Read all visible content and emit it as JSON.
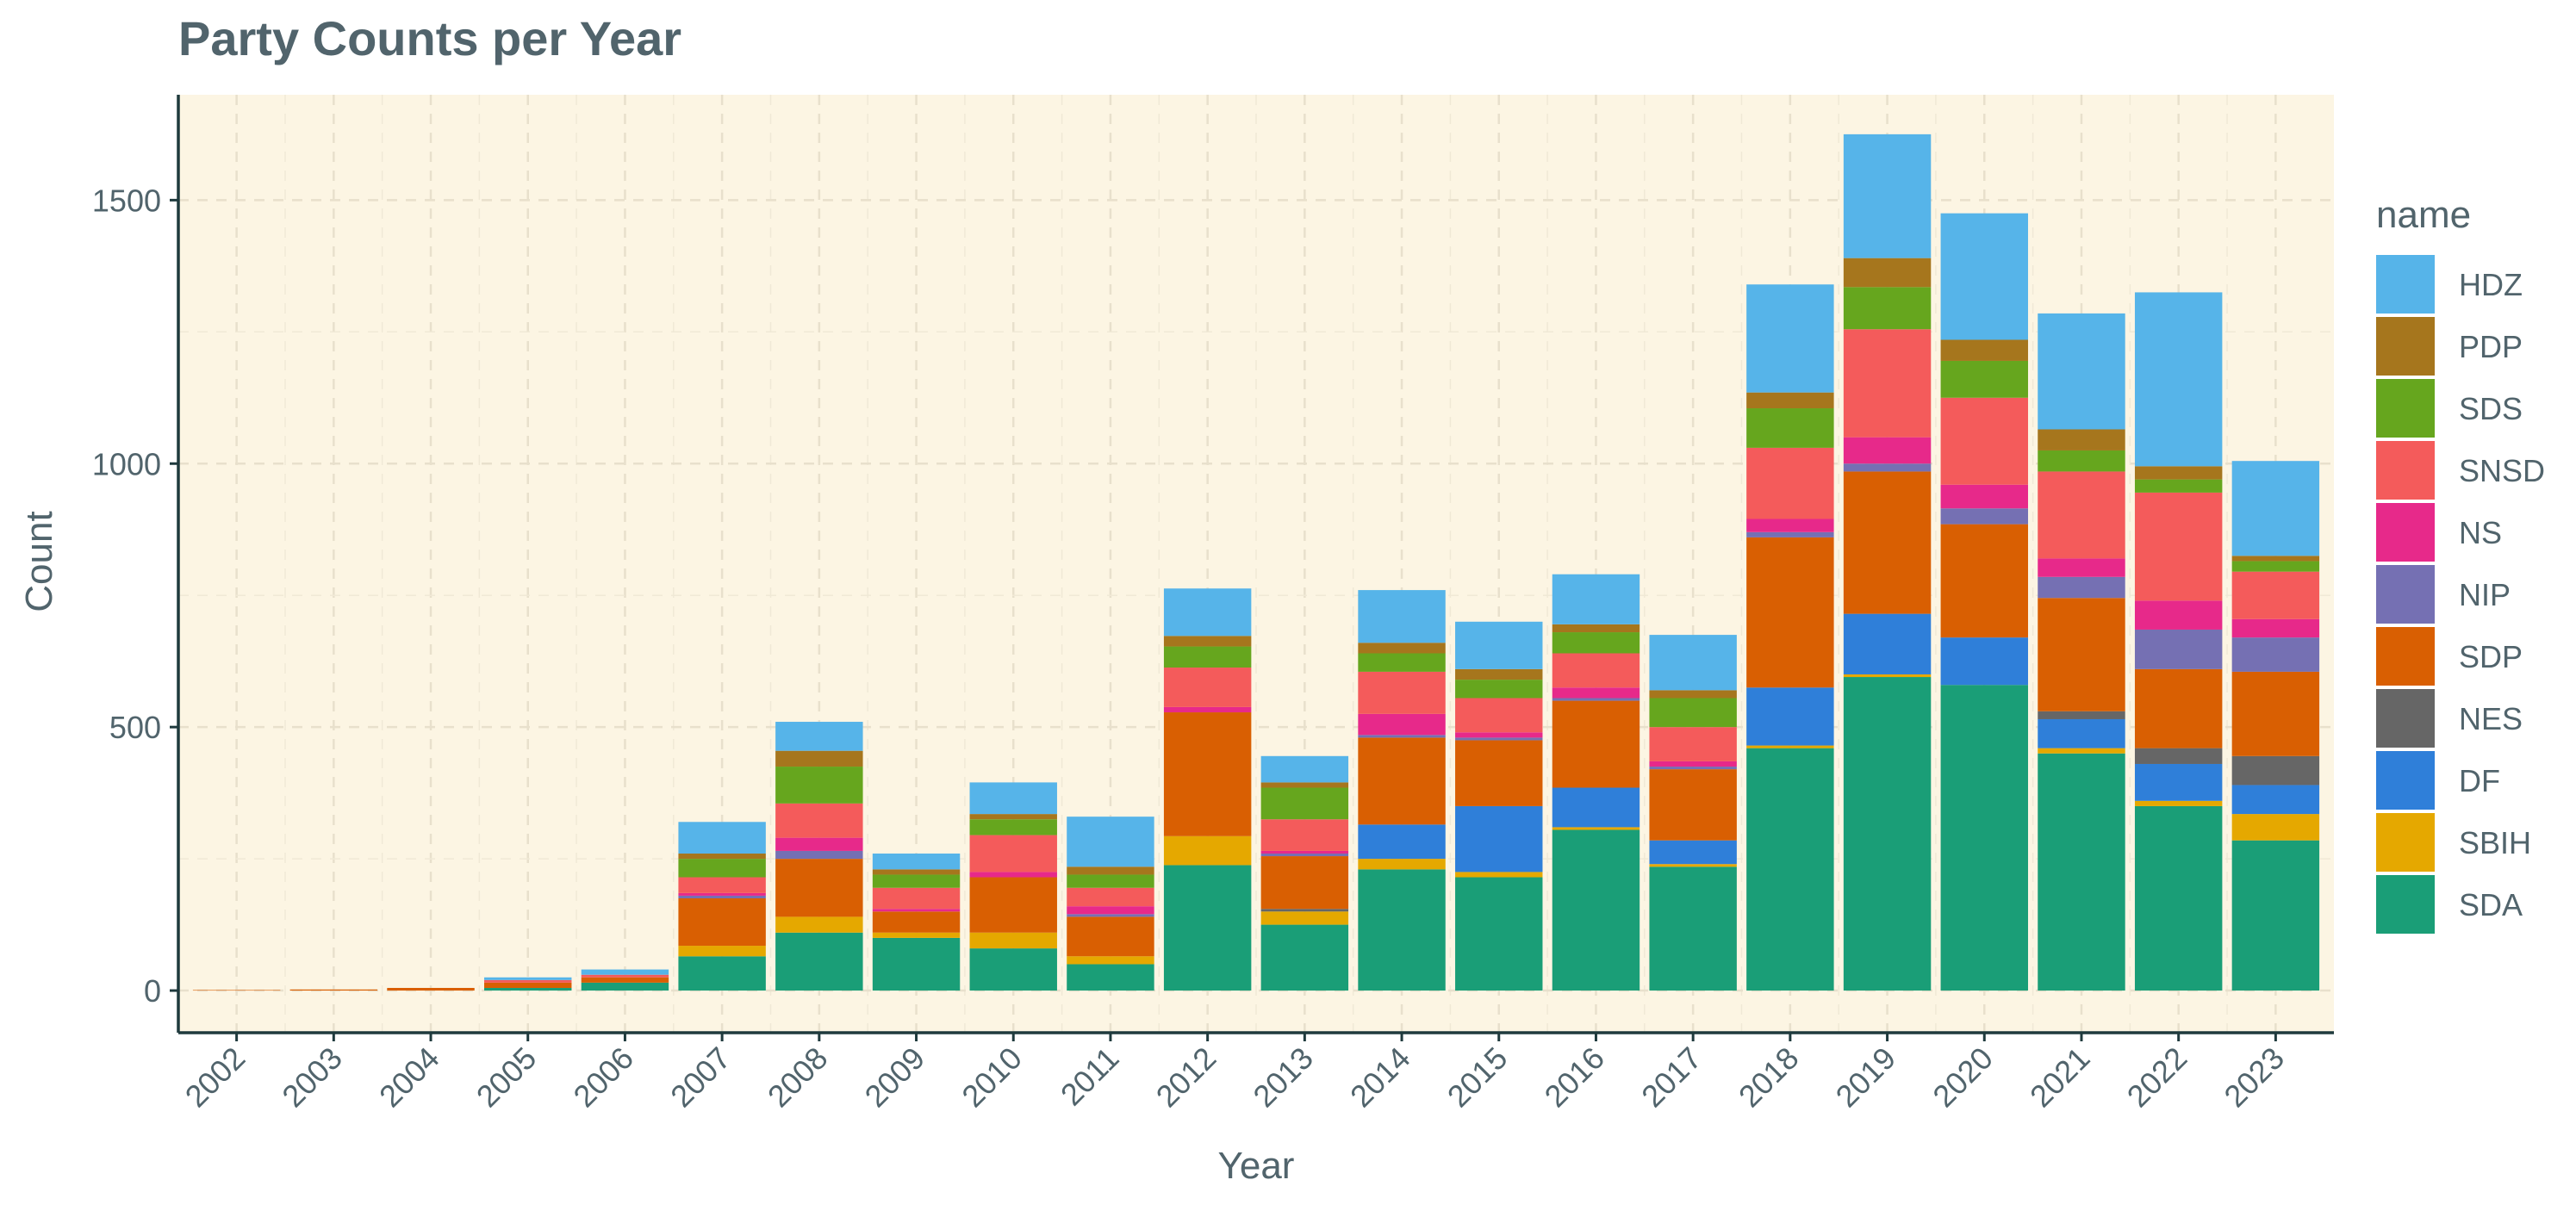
{
  "chart_data": {
    "type": "bar",
    "stacked": true,
    "title": "Party Counts per Year",
    "xlabel": "Year",
    "ylabel": "Count",
    "ylim": [
      -80,
      1700
    ],
    "yticks": [
      0,
      500,
      1000,
      1500
    ],
    "grid": true,
    "legend_title": "name",
    "legend_position": "right",
    "panel_background": "#fcf5e3",
    "categories": [
      "2002",
      "2003",
      "2004",
      "2005",
      "2006",
      "2007",
      "2008",
      "2009",
      "2010",
      "2011",
      "2012",
      "2013",
      "2014",
      "2015",
      "2016",
      "2017",
      "2018",
      "2019",
      "2020",
      "2021",
      "2022",
      "2023"
    ],
    "stack_order": [
      "SDA",
      "SBIH",
      "DF",
      "NES",
      "SDP",
      "NIP",
      "NS",
      "SNSD",
      "SDS",
      "PDP",
      "HDZ"
    ],
    "legend_order": [
      "HDZ",
      "PDP",
      "SDS",
      "SNSD",
      "NS",
      "NIP",
      "SDP",
      "NES",
      "DF",
      "SBIH",
      "SDA"
    ],
    "series": [
      {
        "name": "SDA",
        "color": "#1a9e77",
        "values": [
          0,
          0,
          0,
          5,
          15,
          65,
          110,
          100,
          80,
          50,
          238,
          125,
          230,
          215,
          305,
          235,
          460,
          595,
          580,
          450,
          350,
          285
        ]
      },
      {
        "name": "SBIH",
        "color": "#e5a800",
        "values": [
          0,
          0,
          0,
          0,
          0,
          20,
          30,
          10,
          30,
          15,
          55,
          25,
          20,
          10,
          5,
          5,
          5,
          5,
          0,
          10,
          10,
          50
        ]
      },
      {
        "name": "DF",
        "color": "#2f7fd9",
        "values": [
          0,
          0,
          0,
          0,
          0,
          0,
          0,
          0,
          0,
          0,
          0,
          0,
          65,
          125,
          75,
          45,
          110,
          115,
          90,
          55,
          70,
          55
        ]
      },
      {
        "name": "NES",
        "color": "#666666",
        "values": [
          0,
          0,
          0,
          0,
          0,
          0,
          0,
          0,
          0,
          0,
          0,
          5,
          0,
          0,
          0,
          0,
          0,
          0,
          0,
          15,
          30,
          55
        ]
      },
      {
        "name": "SDP",
        "color": "#d95f02",
        "values": [
          1,
          2,
          5,
          10,
          10,
          90,
          110,
          40,
          105,
          75,
          235,
          100,
          165,
          125,
          165,
          135,
          285,
          270,
          215,
          215,
          150,
          160
        ]
      },
      {
        "name": "NIP",
        "color": "#7570b3",
        "values": [
          0,
          0,
          0,
          0,
          0,
          5,
          15,
          0,
          0,
          5,
          0,
          5,
          5,
          5,
          5,
          5,
          10,
          15,
          30,
          40,
          75,
          65
        ]
      },
      {
        "name": "NS",
        "color": "#e7298a",
        "values": [
          0,
          0,
          0,
          0,
          0,
          5,
          25,
          5,
          10,
          15,
          10,
          5,
          40,
          10,
          20,
          10,
          25,
          50,
          45,
          35,
          55,
          35
        ]
      },
      {
        "name": "SNSD",
        "color": "#f45b5b",
        "values": [
          0,
          0,
          0,
          5,
          5,
          30,
          65,
          40,
          70,
          35,
          75,
          60,
          80,
          65,
          65,
          65,
          135,
          205,
          165,
          165,
          205,
          90
        ]
      },
      {
        "name": "SDS",
        "color": "#66a61e",
        "values": [
          0,
          0,
          0,
          0,
          0,
          35,
          70,
          25,
          30,
          25,
          40,
          60,
          35,
          35,
          40,
          55,
          75,
          80,
          70,
          40,
          25,
          20
        ]
      },
      {
        "name": "PDP",
        "color": "#a6761d",
        "values": [
          0,
          0,
          0,
          0,
          0,
          10,
          30,
          10,
          10,
          15,
          20,
          10,
          20,
          20,
          15,
          15,
          30,
          55,
          40,
          40,
          25,
          10
        ]
      },
      {
        "name": "HDZ",
        "color": "#56b4e9",
        "values": [
          0,
          0,
          0,
          5,
          10,
          60,
          55,
          30,
          60,
          95,
          90,
          50,
          100,
          90,
          95,
          105,
          205,
          235,
          240,
          220,
          330,
          180
        ]
      }
    ]
  }
}
